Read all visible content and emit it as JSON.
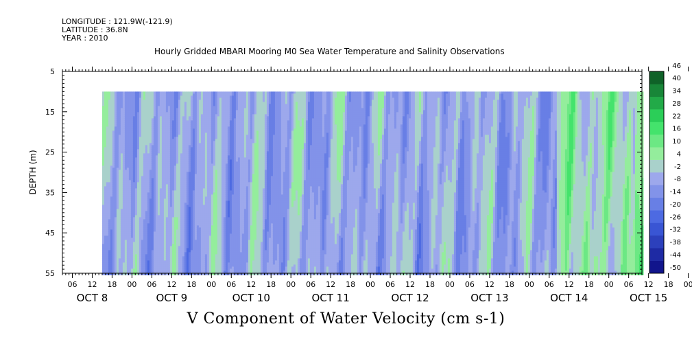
{
  "header": {
    "longitude": "LONGITUDE : 121.9W(-121.9)",
    "latitude": "LATITUDE : 36.8N",
    "year": "YEAR : 2010"
  },
  "chart_data": {
    "type": "heatmap",
    "title": "Hourly Gridded MBARI Mooring M0 Sea Water Temperature and Salinity Observations",
    "xlabel": "V Component of Water Velocity (cm s-1)",
    "ylabel": "DEPTH (m)",
    "y_range": [
      5,
      55
    ],
    "y_ticks": [
      5,
      15,
      25,
      35,
      45,
      55
    ],
    "y_reversed": true,
    "x_range": [
      "2010-10-08T03:00",
      "2010-10-15T10:00"
    ],
    "data_start": "2010-10-08T15:00",
    "depth_range_data": [
      10,
      55
    ],
    "hour_tick_labels": [
      "06",
      "12",
      "18",
      "00",
      "06",
      "12",
      "18",
      "00",
      "06",
      "12",
      "18",
      "00",
      "06",
      "12",
      "18",
      "00",
      "06",
      "12",
      "18",
      "00",
      "06",
      "12",
      "18",
      "00",
      "06",
      "12",
      "18",
      "00",
      "06",
      "12",
      "18",
      "00",
      "06"
    ],
    "day_labels": [
      "OCT  8",
      "OCT  9",
      "OCT 10",
      "OCT 11",
      "OCT 12",
      "OCT 13",
      "OCT 14",
      "OCT 15"
    ],
    "colorbar_levels": [
      -50,
      -44,
      -38,
      -32,
      -26,
      -20,
      -14,
      -8,
      -2,
      4,
      10,
      16,
      22,
      28,
      34,
      40,
      46
    ],
    "colorbar_tick_labels": [
      "46",
      "40",
      "34",
      "28",
      "22",
      "16",
      "10",
      "4",
      "-2",
      "-8",
      "-14",
      "-20",
      "-26",
      "-32",
      "-38",
      "-44",
      "-50"
    ],
    "colors": {
      "strong_negative": "#0a0a80",
      "negative": "#4060e0",
      "weak_negative": "#aab2ee",
      "weak_positive": "#a8f0a8",
      "positive": "#30e060",
      "strong_positive": "#0a5020"
    }
  }
}
